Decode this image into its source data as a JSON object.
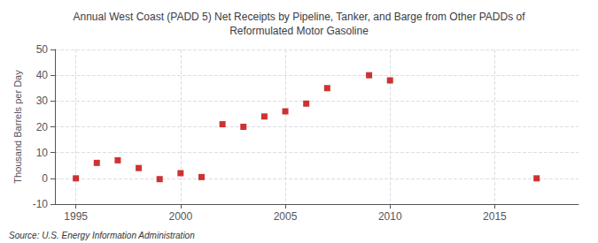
{
  "chart_data": {
    "type": "scatter",
    "title": "Annual West Coast (PADD 5) Net Receipts by Pipeline, Tanker, and Barge from Other PADDs of\nReformulated Motor Gasoline",
    "ylabel": "Thousand Barrels per Day",
    "annotation": "Source: U.S. Energy Information Administration",
    "x": [
      1995,
      1996,
      1997,
      1998,
      1999,
      2000,
      2001,
      2002,
      2003,
      2004,
      2005,
      2006,
      2007,
      2009,
      2010,
      2017
    ],
    "values": [
      0,
      6,
      7,
      4,
      -0.3,
      2,
      0.5,
      21,
      20,
      24,
      26,
      29,
      35,
      40,
      38,
      0
    ],
    "color": "#c00000",
    "marker": "square",
    "xlim": [
      1994,
      2019
    ],
    "xticks": [
      1995,
      2000,
      2005,
      2010,
      2015
    ],
    "ylim": [
      -10,
      50
    ],
    "yticks": [
      -10,
      0,
      10,
      20,
      30,
      40,
      50
    ],
    "grid": true
  }
}
